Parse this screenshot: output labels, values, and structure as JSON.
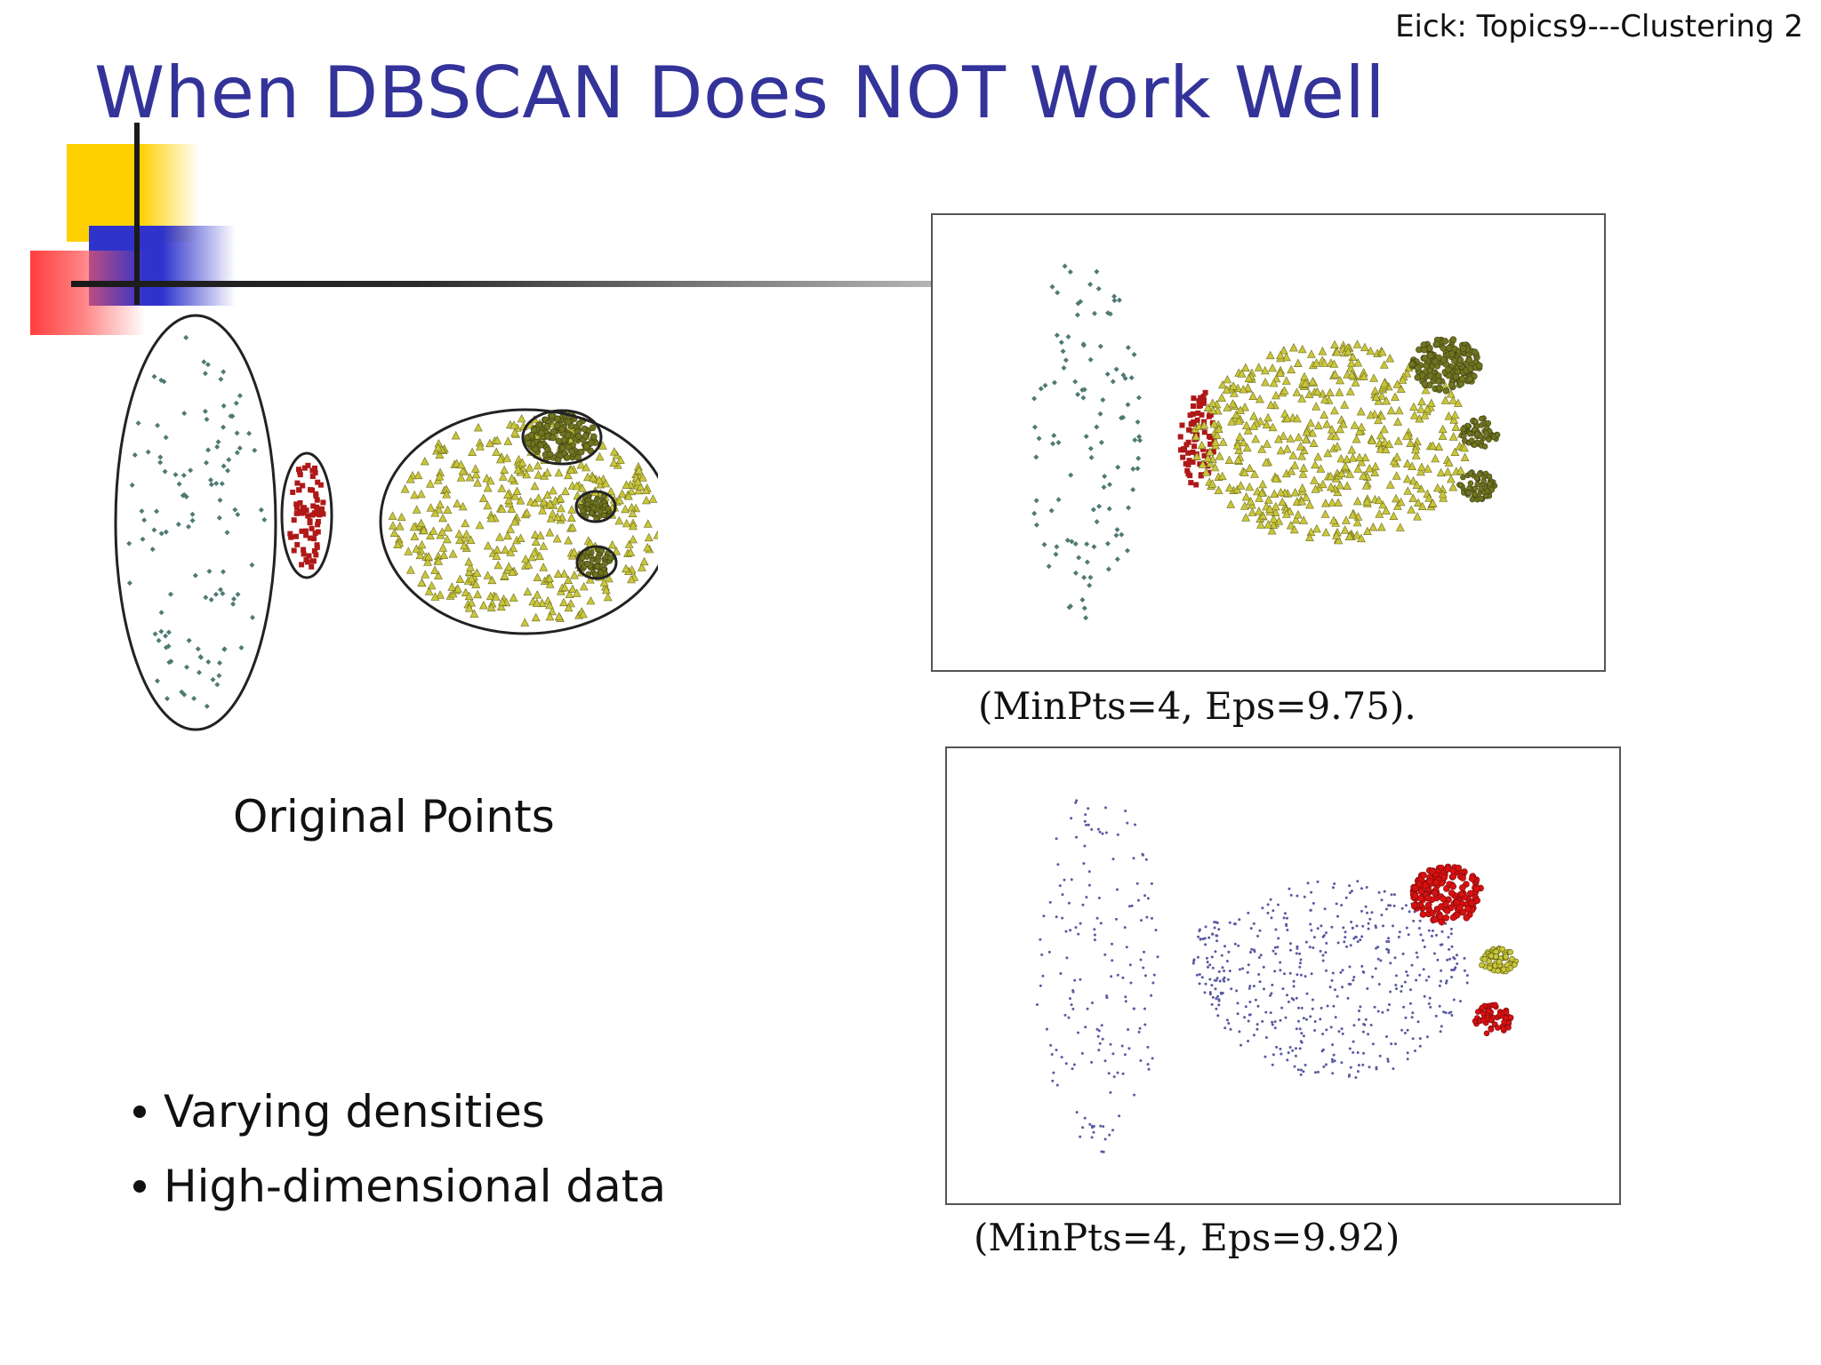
{
  "header_note": "Eick: Topics9---Clustering 2",
  "title": "When DBSCAN Does NOT Work Well",
  "left_figure": {
    "label": "Original Points"
  },
  "top_right": {
    "caption": "(MinPts=4, Eps=9.75)."
  },
  "bottom_right": {
    "caption": "(MinPts=4, Eps=9.92)"
  },
  "bullets": [
    "Varying densities",
    "High-dimensional data"
  ],
  "colors": {
    "title": "#33339a",
    "sparse_cluster": "#4f7a74",
    "red_cluster": "#b01818",
    "yellow_cluster": "#c9c63a",
    "dark_cluster": "#6f7420",
    "noise": "#5a5aa0",
    "bright_red": "#d81010"
  }
}
